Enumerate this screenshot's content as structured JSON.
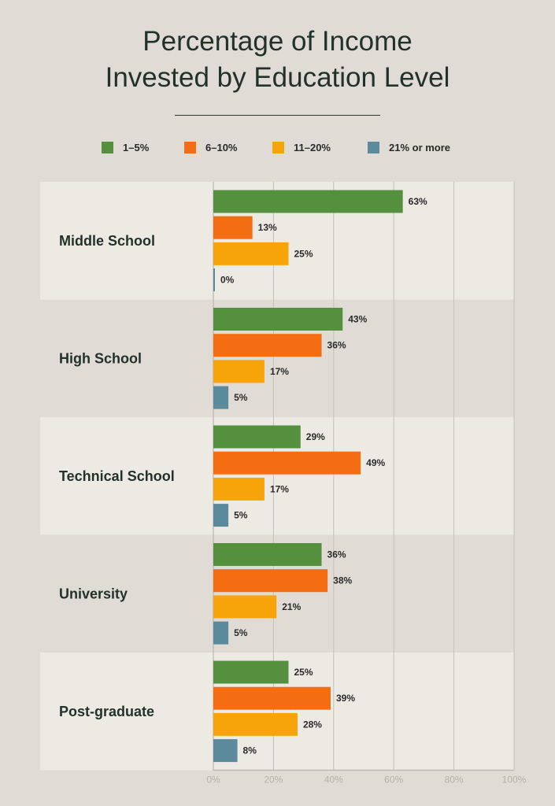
{
  "title": {
    "line1": "Percentage of Income",
    "line2": "Invested by Education Level"
  },
  "chart_data": {
    "type": "bar",
    "orientation": "horizontal",
    "title": "Percentage of Income Invested by Education Level",
    "categories": [
      "Middle School",
      "High School",
      "Technical School",
      "University",
      "Post-graduate"
    ],
    "series": [
      {
        "name": "1–5%",
        "color": "#55903f",
        "values": [
          63,
          43,
          29,
          36,
          25
        ]
      },
      {
        "name": "6–10%",
        "color": "#f46d12",
        "values": [
          13,
          36,
          49,
          38,
          39
        ]
      },
      {
        "name": "11–20%",
        "color": "#f6a40a",
        "values": [
          25,
          17,
          17,
          21,
          28
        ]
      },
      {
        "name": "21% or more",
        "color": "#5a8a9c",
        "values": [
          0,
          5,
          5,
          5,
          8
        ]
      }
    ],
    "value_suffix": "%",
    "xlim": [
      0,
      100
    ],
    "xticks": [
      "0%",
      "20%",
      "40%",
      "60%",
      "80%",
      "100%"
    ],
    "xlabel": "",
    "ylabel": "",
    "legend": "top",
    "grid": true
  }
}
